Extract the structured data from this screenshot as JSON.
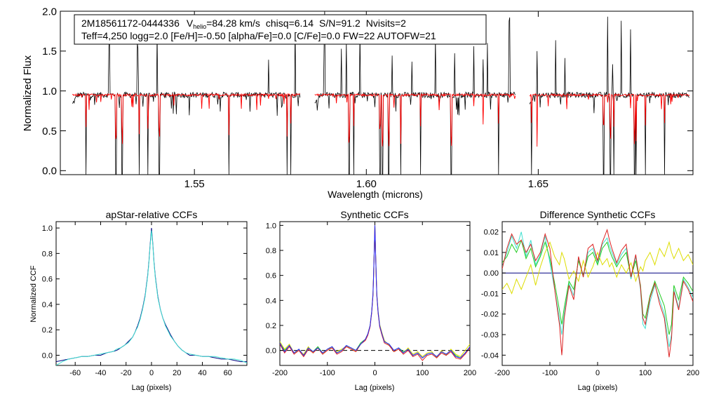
{
  "colors": {
    "observed": "#000000",
    "model": "#ff0000",
    "ccf_primary": "#000080",
    "ccf_secondary": "#40e0d0",
    "ccf_green": "#22cc22",
    "ccf_yellow": "#dddd00",
    "ccf_red": "#dd2222",
    "ccf_blue": "#2222ff"
  },
  "annotation": {
    "star_id": "2M18561172-0444336",
    "vhelio_label": "V",
    "vhelio_sub": "helio",
    "vhelio_value": "=84.28 km/s",
    "chisq": "chisq=6.14",
    "snr": "S/N=91.2",
    "nvisits": "Nvisits=2",
    "params_line": "Teff=4,250 logg=2.0 [Fe/H]=-0.50 [alpha/Fe]=0.0 [C/Fe]=0.0 FW=22 AUTOFW=21"
  },
  "chart_data": [
    {
      "id": "spectrum",
      "type": "line",
      "title": "",
      "xlabel": "Wavelength (microns)",
      "ylabel": "Normalized Flux",
      "xlim": [
        1.511,
        1.695
      ],
      "ylim": [
        -0.05,
        2.0
      ],
      "x_ticks": [
        1.55,
        1.6,
        1.65
      ],
      "x_tick_labels": [
        "1.55",
        "1.60",
        "1.65"
      ],
      "y_ticks": [
        0.0,
        0.5,
        1.0,
        1.5,
        2.0
      ],
      "y_tick_labels": [
        "0.0",
        "0.5",
        "1.0",
        "1.5",
        "2.0"
      ],
      "detector_chips": [
        [
          1.5145,
          1.5808
        ],
        [
          1.585,
          1.6435
        ],
        [
          1.6475,
          1.694
        ]
      ],
      "continuum_level": 0.95,
      "series": [
        {
          "name": "observed",
          "color": "#000000",
          "noise": 0.035,
          "line_width": 0.8
        },
        {
          "name": "model",
          "color": "#ff0000",
          "noise": 0.014,
          "line_width": 0.9
        }
      ],
      "strong_lines_microns": [
        1.5185,
        1.5272,
        1.529,
        1.534,
        1.5365,
        1.5398,
        1.56,
        1.577,
        1.5781,
        1.595,
        1.5963,
        1.604,
        1.6047,
        1.6065,
        1.61,
        1.6158,
        1.6247,
        1.634,
        1.6385,
        1.648,
        1.6497,
        1.669,
        1.671,
        1.672,
        1.678,
        1.6785,
        1.6812,
        1.6868
      ],
      "emission_spikes_microns": [
        1.5252,
        1.5335,
        1.5391,
        1.5715,
        1.5793,
        1.5878,
        1.5928,
        1.5942,
        1.5982,
        1.6075,
        1.6132,
        1.6201,
        1.6257,
        1.6313,
        1.634,
        1.6352,
        1.6416,
        1.6496,
        1.6551,
        1.6577,
        1.6702,
        1.6716,
        1.6742,
        1.6768
      ]
    },
    {
      "id": "apstar-ccf",
      "type": "line",
      "title": "apStar-relative CCFs",
      "xlabel": "Lag (pixels)",
      "ylabel": "Normalized CCF",
      "xlim": [
        -75,
        75
      ],
      "ylim": [
        -0.08,
        1.05
      ],
      "x_ticks": [
        -60,
        -40,
        -20,
        0,
        20,
        40,
        60
      ],
      "x_tick_labels": [
        "-60",
        "-40",
        "-20",
        "0",
        "20",
        "40",
        "60"
      ],
      "y_ticks": [
        0.0,
        0.2,
        0.4,
        0.6,
        0.8,
        1.0
      ],
      "y_tick_labels": [
        "0.0",
        "0.2",
        "0.4",
        "0.6",
        "0.8",
        "1.0"
      ],
      "lag": [
        -75,
        -70,
        -65,
        -60,
        -55,
        -50,
        -45,
        -40,
        -35,
        -30,
        -27,
        -24,
        -21,
        -18,
        -15,
        -13,
        -11,
        -9,
        -7,
        -5,
        -4,
        -3,
        -2,
        -1,
        0,
        1,
        2,
        3,
        4,
        5,
        7,
        9,
        11,
        13,
        15,
        18,
        21,
        24,
        27,
        30,
        35,
        40,
        45,
        50,
        55,
        60,
        65,
        70,
        75
      ],
      "series": [
        {
          "name": "visit 1",
          "color": "#000080",
          "values": [
            -0.05,
            -0.04,
            -0.03,
            -0.02,
            -0.01,
            -0.01,
            0.0,
            0.0,
            0.02,
            0.03,
            0.04,
            0.06,
            0.08,
            0.11,
            0.14,
            0.18,
            0.23,
            0.29,
            0.37,
            0.47,
            0.55,
            0.63,
            0.74,
            0.88,
            1.0,
            0.88,
            0.73,
            0.62,
            0.54,
            0.46,
            0.36,
            0.29,
            0.24,
            0.2,
            0.16,
            0.11,
            0.07,
            0.04,
            0.02,
            0.0,
            0.0,
            -0.01,
            -0.01,
            -0.02,
            -0.03,
            -0.03,
            -0.04,
            -0.05,
            -0.05
          ]
        },
        {
          "name": "visit 2",
          "color": "#40e0d0",
          "values": [
            -0.08,
            -0.05,
            -0.03,
            -0.02,
            -0.01,
            -0.01,
            0.0,
            0.01,
            0.02,
            0.03,
            0.05,
            0.06,
            0.08,
            0.1,
            0.14,
            0.18,
            0.22,
            0.28,
            0.36,
            0.46,
            0.54,
            0.62,
            0.73,
            0.87,
            0.98,
            0.87,
            0.72,
            0.61,
            0.53,
            0.45,
            0.36,
            0.29,
            0.23,
            0.19,
            0.15,
            0.11,
            0.07,
            0.04,
            0.02,
            0.01,
            0.0,
            -0.01,
            -0.01,
            -0.01,
            -0.02,
            -0.03,
            -0.03,
            -0.04,
            -0.06
          ]
        }
      ]
    },
    {
      "id": "synthetic-ccf",
      "type": "line",
      "title": "Synthetic CCFs",
      "xlabel": "Lag (pixels)",
      "ylabel": "",
      "xlim": [
        -200,
        200
      ],
      "ylim": [
        -0.12,
        1.03
      ],
      "x_ticks": [
        -200,
        -100,
        0,
        100,
        200
      ],
      "x_tick_labels": [
        "-200",
        "-100",
        "0",
        "100",
        "200"
      ],
      "y_ticks": [
        0.0,
        0.2,
        0.4,
        0.6,
        0.8,
        1.0
      ],
      "y_tick_labels": [
        "0.0",
        "0.2",
        "0.4",
        "0.6",
        "0.8",
        "1.0"
      ],
      "zero_line": true,
      "lag": [
        -200,
        -190,
        -180,
        -170,
        -160,
        -150,
        -140,
        -130,
        -120,
        -110,
        -100,
        -90,
        -80,
        -70,
        -60,
        -50,
        -40,
        -30,
        -20,
        -15,
        -10,
        -7,
        -4,
        -2,
        0,
        2,
        4,
        7,
        10,
        15,
        20,
        30,
        40,
        50,
        60,
        70,
        80,
        90,
        100,
        110,
        120,
        130,
        140,
        150,
        160,
        170,
        180,
        190,
        200
      ],
      "series": [
        {
          "name": "green",
          "color": "#22cc22",
          "values": [
            0.06,
            0.0,
            0.04,
            -0.02,
            0.01,
            -0.04,
            0.02,
            -0.01,
            0.03,
            -0.02,
            0.01,
            0.03,
            -0.02,
            0.0,
            0.04,
            0.02,
            0.0,
            0.06,
            0.09,
            0.13,
            0.2,
            0.3,
            0.45,
            0.7,
            1.0,
            0.7,
            0.45,
            0.3,
            0.2,
            0.13,
            0.07,
            0.05,
            0.0,
            0.02,
            -0.01,
            0.01,
            -0.04,
            -0.02,
            -0.06,
            -0.03,
            -0.02,
            -0.05,
            -0.01,
            -0.03,
            0.0,
            -0.04,
            -0.06,
            -0.02,
            0.03
          ]
        },
        {
          "name": "yellow",
          "color": "#dddd00",
          "values": [
            0.07,
            0.01,
            0.05,
            -0.02,
            0.0,
            -0.03,
            0.03,
            -0.02,
            0.02,
            -0.03,
            0.01,
            0.02,
            -0.01,
            0.01,
            0.03,
            0.02,
            -0.01,
            0.05,
            0.09,
            0.13,
            0.2,
            0.3,
            0.46,
            0.71,
            1.0,
            0.71,
            0.46,
            0.31,
            0.21,
            0.14,
            0.08,
            0.04,
            -0.01,
            0.01,
            -0.02,
            0.02,
            -0.03,
            -0.01,
            -0.05,
            -0.02,
            -0.01,
            -0.06,
            0.0,
            -0.04,
            0.01,
            -0.03,
            -0.05,
            0.0,
            0.05
          ]
        },
        {
          "name": "red",
          "color": "#dd2222",
          "values": [
            0.05,
            -0.02,
            0.03,
            -0.03,
            0.0,
            -0.05,
            0.01,
            -0.02,
            0.02,
            -0.03,
            0.0,
            0.02,
            -0.03,
            -0.01,
            0.03,
            0.01,
            -0.01,
            0.05,
            0.08,
            0.12,
            0.19,
            0.29,
            0.44,
            0.69,
            1.0,
            0.69,
            0.44,
            0.29,
            0.19,
            0.12,
            0.06,
            0.04,
            -0.01,
            0.01,
            -0.03,
            0.0,
            -0.05,
            -0.03,
            -0.08,
            -0.04,
            -0.03,
            -0.06,
            -0.02,
            -0.04,
            -0.01,
            -0.06,
            -0.07,
            -0.03,
            0.02
          ]
        },
        {
          "name": "blue",
          "color": "#2222ff",
          "values": [
            0.06,
            -0.01,
            0.04,
            -0.02,
            0.01,
            -0.04,
            0.02,
            -0.01,
            0.02,
            -0.02,
            0.01,
            0.03,
            -0.02,
            0.0,
            0.04,
            0.02,
            0.0,
            0.05,
            0.09,
            0.13,
            0.2,
            0.3,
            0.45,
            0.7,
            1.0,
            0.7,
            0.45,
            0.3,
            0.2,
            0.13,
            0.07,
            0.05,
            0.0,
            0.02,
            -0.02,
            0.01,
            -0.04,
            -0.02,
            -0.06,
            -0.03,
            -0.02,
            -0.05,
            -0.01,
            -0.03,
            0.0,
            -0.05,
            -0.06,
            -0.02,
            0.03
          ]
        }
      ]
    },
    {
      "id": "difference-ccf",
      "type": "line",
      "title": "Difference Synthetic CCFs",
      "xlabel": "Lag (pixels)",
      "ylabel": "",
      "xlim": [
        -200,
        200
      ],
      "ylim": [
        -0.045,
        0.025
      ],
      "x_ticks": [
        -200,
        -100,
        0,
        100,
        200
      ],
      "x_tick_labels": [
        "-200",
        "-100",
        "0",
        "100",
        "200"
      ],
      "y_ticks": [
        -0.04,
        -0.03,
        -0.02,
        -0.01,
        0.0,
        0.01,
        0.02
      ],
      "y_tick_labels": [
        "-0.04",
        "-0.03",
        "-0.02",
        "-0.01",
        "0.00",
        "0.01",
        "0.02"
      ],
      "lag": [
        -200,
        -190,
        -180,
        -170,
        -160,
        -150,
        -140,
        -130,
        -120,
        -110,
        -100,
        -90,
        -80,
        -75,
        -70,
        -60,
        -50,
        -40,
        -30,
        -20,
        -10,
        0,
        10,
        20,
        25,
        30,
        40,
        50,
        60,
        70,
        80,
        90,
        95,
        100,
        110,
        120,
        130,
        140,
        150,
        155,
        160,
        170,
        180,
        190,
        200
      ],
      "series": [
        {
          "name": "reference",
          "color": "#000080",
          "values": [
            0.0,
            0.0,
            0.0,
            0.0,
            0.0,
            0.0,
            0.0,
            0.0,
            0.0,
            0.0,
            0.0,
            0.0,
            0.0,
            0.0,
            0.0,
            0.0,
            0.0,
            0.0,
            0.0,
            0.0,
            0.0,
            0.0,
            0.0,
            0.0,
            0.0,
            0.0,
            0.0,
            0.0,
            0.0,
            0.0,
            0.0,
            0.0,
            0.0,
            0.0,
            0.0,
            0.0,
            0.0,
            0.0,
            0.0,
            0.0,
            0.0,
            0.0,
            0.0,
            0.0,
            0.0
          ]
        },
        {
          "name": "cyan",
          "color": "#40e0d0",
          "values": [
            0.003,
            0.01,
            0.018,
            0.012,
            0.02,
            0.008,
            0.016,
            0.004,
            0.009,
            0.018,
            0.005,
            -0.008,
            -0.022,
            -0.03,
            -0.02,
            -0.005,
            -0.011,
            0.007,
            -0.002,
            0.01,
            0.012,
            0.005,
            0.014,
            0.017,
            0.013,
            0.01,
            0.004,
            0.009,
            0.012,
            -0.003,
            0.008,
            -0.008,
            -0.025,
            -0.027,
            -0.014,
            -0.006,
            -0.013,
            -0.02,
            -0.036,
            -0.03,
            -0.008,
            -0.017,
            -0.003,
            -0.007,
            -0.012
          ]
        },
        {
          "name": "green",
          "color": "#22cc22",
          "values": [
            0.005,
            0.008,
            0.014,
            0.01,
            0.016,
            0.007,
            0.012,
            0.003,
            0.008,
            0.015,
            0.007,
            -0.005,
            -0.018,
            -0.025,
            -0.017,
            -0.004,
            -0.008,
            0.006,
            -0.001,
            0.008,
            0.01,
            0.004,
            0.012,
            0.015,
            0.011,
            0.008,
            0.003,
            0.007,
            0.01,
            -0.002,
            0.006,
            -0.006,
            -0.02,
            -0.022,
            -0.011,
            -0.004,
            -0.01,
            -0.016,
            -0.03,
            -0.025,
            -0.006,
            -0.013,
            -0.002,
            -0.005,
            -0.009
          ]
        },
        {
          "name": "yellow",
          "color": "#dddd00",
          "values": [
            -0.008,
            -0.005,
            -0.01,
            -0.003,
            -0.008,
            -0.002,
            0.004,
            -0.006,
            0.003,
            0.01,
            0.015,
            0.008,
            0.004,
            0.01,
            0.007,
            -0.003,
            0.001,
            -0.004,
            0.006,
            -0.002,
            0.003,
            0.01,
            0.004,
            0.007,
            0.003,
            0.005,
            -0.002,
            0.004,
            0.0,
            0.005,
            -0.004,
            0.003,
            0.001,
            0.006,
            0.01,
            0.004,
            0.012,
            0.008,
            0.015,
            0.01,
            0.007,
            0.012,
            0.006,
            0.009,
            0.004
          ]
        },
        {
          "name": "red",
          "color": "#dd2222",
          "values": [
            0.002,
            0.012,
            0.019,
            0.014,
            0.016,
            0.01,
            0.014,
            0.006,
            0.01,
            0.019,
            0.012,
            -0.008,
            -0.025,
            -0.04,
            -0.022,
            -0.006,
            -0.013,
            0.008,
            -0.002,
            0.012,
            0.014,
            0.006,
            0.015,
            0.021,
            0.016,
            0.012,
            0.005,
            0.011,
            0.014,
            -0.002,
            0.009,
            -0.007,
            -0.022,
            -0.025,
            -0.012,
            -0.005,
            -0.015,
            -0.022,
            -0.041,
            -0.032,
            -0.009,
            -0.018,
            -0.004,
            -0.008,
            -0.014
          ]
        }
      ]
    }
  ]
}
